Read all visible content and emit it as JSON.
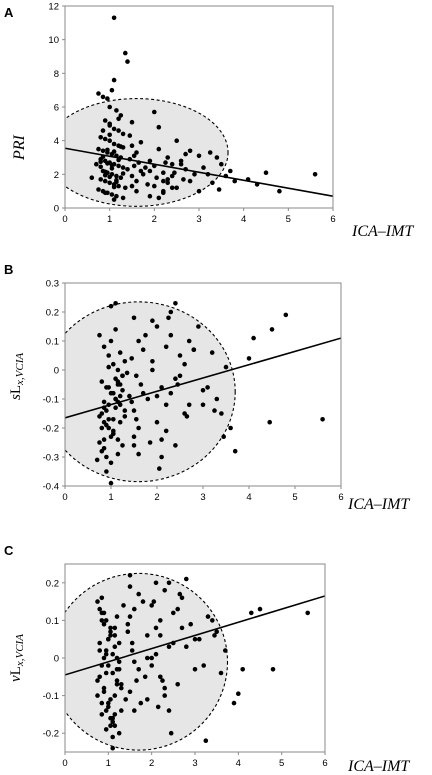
{
  "chart_data": [
    {
      "type": "scatter",
      "panel": "A",
      "xlabel": "ICA–IMT",
      "ylabel": "PRI",
      "xlim": [
        0,
        6
      ],
      "ylim": [
        0,
        12
      ],
      "xticks": [
        "0",
        "1",
        "2",
        "3",
        "4",
        "5",
        "6"
      ],
      "yticks": [
        "0",
        "2",
        "4",
        "6",
        "8",
        "10",
        "12"
      ],
      "grid": false,
      "regression_line": {
        "x": [
          0,
          6
        ],
        "y": [
          3.55,
          0.7
        ]
      },
      "confidence_ellipse": {
        "center": [
          1.6,
          3.3
        ],
        "semi_axis_x": 2.05,
        "semi_axis_y": 3.2,
        "style": "dashed",
        "fill": "#e6e6e6"
      },
      "points": {
        "x": [
          1.1,
          1.35,
          1.4,
          1.1,
          1.05,
          0.75,
          0.85,
          0.95,
          1.0,
          1.15,
          1.25,
          0.9,
          1.0,
          1.1,
          1.2,
          1.3,
          0.8,
          0.9,
          1.0,
          1.1,
          1.2,
          1.3,
          0.75,
          0.85,
          0.95,
          1.05,
          1.15,
          1.25,
          0.8,
          0.9,
          1.0,
          1.1,
          1.2,
          1.3,
          1.4,
          0.85,
          0.95,
          1.05,
          1.15,
          1.25,
          0.8,
          0.9,
          1.0,
          1.1,
          1.2,
          1.35,
          0.75,
          0.85,
          0.95,
          1.05,
          1.15,
          1.3,
          0.8,
          0.9,
          1.0,
          1.1,
          1.2,
          0.85,
          0.95,
          1.05,
          1.15,
          1.25,
          0.8,
          0.9,
          1.0,
          1.1,
          1.3,
          0.95,
          1.05,
          1.15,
          0.85,
          1.0,
          1.2,
          0.9,
          1.1,
          0.7,
          0.6,
          1.5,
          1.6,
          1.45,
          1.55,
          1.7,
          1.5,
          1.6,
          1.5,
          1.7,
          1.45,
          1.65,
          1.55,
          1.75,
          1.5,
          1.6,
          1.8,
          1.9,
          2.0,
          2.1,
          2.2,
          2.3,
          2.4,
          2.0,
          2.2,
          2.1,
          1.9,
          2.3,
          2.0,
          2.5,
          2.6,
          2.2,
          2.4,
          2.7,
          2.8,
          2.5,
          2.9,
          3.0,
          2.6,
          2.3,
          2.1,
          1.85,
          2.05,
          2.25,
          2.45,
          2.65,
          3.1,
          3.2,
          3.3,
          3.5,
          3.6,
          3.7,
          3.4,
          3.8,
          4.3,
          4.5,
          4.8,
          5.6,
          4.1,
          3.0,
          2.7,
          2.4,
          2.8,
          2.2,
          1.9,
          3.25,
          3.45
        ],
        "y": [
          11.3,
          9.2,
          8.7,
          7.6,
          7.0,
          6.8,
          6.6,
          6.5,
          6.0,
          5.8,
          5.5,
          5.2,
          4.9,
          4.7,
          4.6,
          4.4,
          4.2,
          4.1,
          4.0,
          3.8,
          3.7,
          3.6,
          3.5,
          3.4,
          3.3,
          3.2,
          3.1,
          3.0,
          2.9,
          2.8,
          2.7,
          2.6,
          2.5,
          2.4,
          2.3,
          2.2,
          2.1,
          2.0,
          1.9,
          1.8,
          1.7,
          1.6,
          1.5,
          1.4,
          1.3,
          1.2,
          1.1,
          1.0,
          0.9,
          0.8,
          0.7,
          0.6,
          2.45,
          2.15,
          1.85,
          3.35,
          2.85,
          3.05,
          2.65,
          2.35,
          1.55,
          3.65,
          2.75,
          1.95,
          4.35,
          1.25,
          2.05,
          3.45,
          2.55,
          1.65,
          4.6,
          5.0,
          5.3,
          0.9,
          0.5,
          2.6,
          1.8,
          3.7,
          3.3,
          2.9,
          2.5,
          2.2,
          1.9,
          1.6,
          1.3,
          3.9,
          4.3,
          2.7,
          3.1,
          2.0,
          5.1,
          1.0,
          2.4,
          2.8,
          5.7,
          3.5,
          2.1,
          1.7,
          2.6,
          1.3,
          1.0,
          4.8,
          2.2,
          3.0,
          2.5,
          4.0,
          2.8,
          1.6,
          1.9,
          2.3,
          3.4,
          1.2,
          2.0,
          3.1,
          2.6,
          1.5,
          0.6,
          1.4,
          1.8,
          2.7,
          2.1,
          1.7,
          2.4,
          2.0,
          1.5,
          2.6,
          1.9,
          2.2,
          3.0,
          1.6,
          1.4,
          2.1,
          1.0,
          2.0,
          1.7,
          1.0,
          3.2,
          1.2,
          1.6,
          0.9,
          0.7,
          3.3,
          1.1
        ]
      }
    },
    {
      "type": "scatter",
      "panel": "B",
      "xlabel": "ICA–IMT",
      "ylabel_prefix": "s",
      "ylabel_main": "L",
      "ylabel_sub": "x,VCIA",
      "xlim": [
        0,
        6
      ],
      "ylim": [
        -0.4,
        0.3
      ],
      "xticks": [
        "0",
        "1",
        "2",
        "3",
        "4",
        "5",
        "6"
      ],
      "yticks": [
        "-0.4",
        "-0.3",
        "-0.2",
        "-0.1",
        "0",
        "0.1",
        "0.2",
        "0.3"
      ],
      "grid": false,
      "regression_line": {
        "x": [
          0,
          6
        ],
        "y": [
          -0.165,
          0.11
        ]
      },
      "confidence_ellipse": {
        "center": [
          1.6,
          -0.075
        ],
        "semi_axis_x": 2.1,
        "semi_axis_y": 0.31,
        "style": "dashed",
        "fill": "#e6e6e6"
      },
      "points": {
        "x": [
          1.0,
          1.1,
          0.75,
          0.85,
          0.95,
          1.05,
          1.15,
          1.25,
          0.8,
          0.9,
          1.0,
          1.1,
          1.2,
          1.3,
          0.75,
          0.85,
          0.95,
          1.05,
          1.15,
          1.25,
          0.8,
          0.9,
          1.0,
          1.1,
          1.2,
          1.3,
          1.4,
          0.85,
          0.95,
          1.05,
          1.15,
          1.25,
          0.8,
          0.9,
          1.0,
          1.1,
          1.2,
          1.35,
          0.75,
          0.85,
          0.95,
          1.05,
          1.15,
          1.3,
          0.8,
          0.9,
          1.0,
          1.1,
          1.2,
          0.85,
          0.95,
          1.05,
          1.15,
          1.25,
          0.9,
          1.0,
          1.1,
          1.2,
          0.95,
          1.05,
          0.85,
          1.15,
          0.7,
          1.5,
          1.6,
          1.45,
          1.55,
          1.7,
          1.5,
          1.6,
          1.5,
          1.7,
          1.45,
          1.65,
          1.55,
          1.75,
          1.5,
          1.6,
          1.8,
          1.9,
          2.0,
          2.1,
          2.2,
          2.3,
          2.4,
          2.0,
          2.2,
          2.1,
          1.9,
          2.3,
          2.0,
          2.5,
          2.6,
          2.2,
          2.4,
          2.7,
          2.8,
          2.5,
          2.9,
          3.0,
          2.6,
          2.3,
          2.1,
          2.25,
          2.45,
          2.65,
          3.1,
          3.2,
          3.3,
          3.5,
          3.6,
          3.7,
          3.4,
          4.1,
          4.45,
          4.8,
          4.5,
          5.6,
          4.0,
          3.0,
          2.7,
          2.8,
          1.85,
          2.05,
          3.25,
          3.45,
          1.9,
          2.4
        ],
        "y": [
          0.22,
          0.23,
          0.12,
          0.08,
          0.05,
          0.02,
          0.0,
          -0.02,
          -0.04,
          -0.06,
          -0.08,
          -0.1,
          -0.12,
          -0.14,
          -0.16,
          -0.18,
          -0.2,
          -0.22,
          -0.24,
          -0.26,
          -0.28,
          -0.3,
          -0.32,
          -0.1,
          -0.05,
          0.03,
          -0.09,
          -0.13,
          -0.17,
          -0.21,
          -0.11,
          -0.07,
          -0.15,
          -0.19,
          -0.23,
          -0.03,
          0.06,
          -0.01,
          -0.25,
          -0.27,
          -0.12,
          -0.08,
          -0.04,
          -0.16,
          -0.2,
          -0.14,
          0.1,
          0.14,
          -0.18,
          -0.11,
          -0.06,
          -0.22,
          -0.29,
          -0.02,
          -0.35,
          -0.39,
          -0.13,
          -0.09,
          0.01,
          -0.17,
          -0.24,
          -0.05,
          -0.31,
          0.18,
          0.1,
          0.04,
          -0.02,
          -0.08,
          -0.14,
          -0.2,
          -0.26,
          0.07,
          -0.11,
          -0.05,
          -0.17,
          0.12,
          -0.23,
          -0.29,
          -0.1,
          0.03,
          0.15,
          -0.06,
          -0.12,
          0.2,
          -0.03,
          -0.18,
          0.08,
          -0.24,
          0.0,
          0.12,
          -0.09,
          0.05,
          -0.15,
          -0.21,
          0.23,
          0.1,
          0.07,
          -0.02,
          0.15,
          -0.12,
          0.02,
          -0.08,
          -0.3,
          0.18,
          -0.05,
          -0.16,
          -0.06,
          0.06,
          -0.1,
          0.01,
          -0.2,
          -0.28,
          -0.15,
          0.11,
          -0.18,
          0.19,
          0.14,
          -0.17,
          0.04,
          -0.07,
          -0.12,
          0.07,
          -0.25,
          -0.34,
          -0.14,
          -0.23,
          0.17,
          -0.26
        ],
        "note_unused": ""
      }
    },
    {
      "type": "scatter",
      "panel": "C",
      "xlabel": "ICA–IMT",
      "ylabel_prefix": "v",
      "ylabel_main": "L",
      "ylabel_sub": "x,VCIA",
      "xlim": [
        0,
        6
      ],
      "ylim": [
        -0.25,
        0.25
      ],
      "xticks": [
        "0",
        "1",
        "2",
        "3",
        "4",
        "5",
        "6"
      ],
      "yticks": [
        "-0.2",
        "-0.1",
        "0",
        "0.1",
        "0.2"
      ],
      "grid": false,
      "regression_line": {
        "x": [
          0,
          6
        ],
        "y": [
          -0.045,
          0.165
        ]
      },
      "confidence_ellipse": {
        "center": [
          1.7,
          -0.01
        ],
        "semi_axis_x": 2.05,
        "semi_axis_y": 0.235,
        "style": "dashed",
        "fill": "#e6e6e6"
      },
      "points": {
        "x": [
          0.75,
          0.85,
          0.95,
          1.05,
          1.15,
          1.25,
          0.8,
          0.9,
          1.0,
          1.1,
          1.2,
          1.3,
          0.75,
          0.85,
          0.95,
          1.05,
          1.15,
          1.25,
          0.8,
          0.9,
          1.0,
          1.1,
          1.2,
          1.3,
          1.4,
          0.85,
          0.95,
          1.05,
          1.15,
          1.25,
          0.8,
          0.9,
          1.0,
          1.1,
          1.2,
          1.35,
          0.75,
          0.85,
          0.95,
          1.05,
          1.15,
          1.3,
          0.8,
          0.9,
          1.0,
          1.1,
          1.2,
          0.85,
          0.95,
          1.05,
          1.15,
          1.25,
          0.9,
          1.0,
          1.1,
          1.2,
          0.95,
          1.05,
          0.85,
          1.15,
          1.1,
          1.5,
          1.6,
          1.45,
          1.55,
          1.7,
          1.5,
          1.6,
          1.5,
          1.7,
          1.45,
          1.65,
          1.55,
          1.75,
          1.5,
          1.6,
          1.8,
          1.9,
          2.0,
          2.1,
          2.2,
          2.3,
          2.4,
          2.0,
          2.2,
          2.1,
          1.9,
          2.3,
          2.0,
          2.5,
          2.6,
          2.2,
          2.4,
          2.7,
          2.8,
          2.5,
          2.9,
          3.0,
          2.6,
          2.3,
          2.1,
          2.25,
          2.45,
          2.65,
          3.1,
          3.2,
          3.3,
          3.5,
          3.6,
          3.7,
          3.4,
          3.9,
          4.1,
          4.3,
          4.5,
          4.8,
          5.6,
          4.0,
          3.0,
          2.7,
          2.8,
          1.85,
          2.05,
          3.25,
          3.45,
          1.9,
          2.4,
          2.15
        ],
        "y": [
          0.15,
          0.12,
          0.1,
          0.08,
          0.06,
          0.04,
          0.02,
          0.0,
          -0.02,
          -0.04,
          -0.06,
          -0.08,
          -0.1,
          -0.12,
          -0.14,
          -0.16,
          -0.18,
          -0.2,
          0.13,
          0.09,
          0.05,
          0.01,
          -0.03,
          -0.07,
          -0.11,
          -0.15,
          -0.19,
          0.07,
          0.03,
          -0.01,
          -0.05,
          -0.09,
          -0.13,
          -0.17,
          0.11,
          0.14,
          -0.06,
          -0.02,
          0.02,
          0.06,
          -0.1,
          -0.14,
          0.04,
          -0.08,
          -0.12,
          -0.16,
          0.0,
          0.1,
          -0.04,
          -0.18,
          0.08,
          -0.03,
          0.12,
          0.05,
          -0.21,
          -0.07,
          0.01,
          -0.11,
          0.16,
          -0.15,
          -0.24,
          0.19,
          0.13,
          0.07,
          0.02,
          -0.03,
          -0.09,
          -0.14,
          0.22,
          0.17,
          0.09,
          -0.06,
          0.04,
          -0.12,
          0.11,
          -0.01,
          0.15,
          0.06,
          -0.02,
          0.2,
          0.1,
          -0.08,
          0.03,
          0.14,
          -0.05,
          0.08,
          -0.11,
          0.18,
          0.0,
          0.12,
          -0.07,
          0.06,
          -0.14,
          0.16,
          0.21,
          0.04,
          0.09,
          -0.03,
          0.13,
          -0.1,
          0.01,
          -0.06,
          -0.2,
          0.17,
          0.05,
          -0.02,
          0.11,
          0.07,
          -0.04,
          0.02,
          0.1,
          -0.12,
          -0.03,
          0.12,
          0.13,
          -0.03,
          0.12,
          -0.095,
          0.05,
          0.08,
          0.03,
          -0.05,
          0.15,
          -0.22,
          0.06,
          0.0,
          0.2,
          -0.13
        ]
      }
    }
  ]
}
